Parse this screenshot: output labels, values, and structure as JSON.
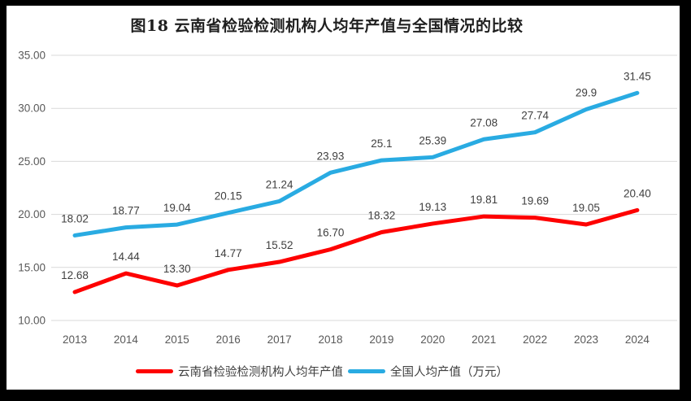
{
  "frame": {
    "background": "#000000",
    "panel_background": "#ffffff"
  },
  "chart_data": {
    "type": "line",
    "title": "图18  云南省检验检测机构人均年产值与全国情况的比较",
    "categories": [
      "2013",
      "2014",
      "2015",
      "2016",
      "2017",
      "2018",
      "2019",
      "2020",
      "2021",
      "2022",
      "2023",
      "2024"
    ],
    "series": [
      {
        "name": "云南省检验检测机构人均年产值",
        "color": "#fe0000",
        "values": [
          12.68,
          14.44,
          13.3,
          14.77,
          15.52,
          16.7,
          18.32,
          19.13,
          19.81,
          19.69,
          19.05,
          20.4
        ],
        "labels": [
          "12.68",
          "14.44",
          "13.30",
          "14.77",
          "15.52",
          "16.70",
          "18.32",
          "19.13",
          "19.81",
          "19.69",
          "19.05",
          "20.40"
        ]
      },
      {
        "name": "全国人均产值（万元）",
        "color": "#29abe2",
        "values": [
          18.02,
          18.77,
          19.04,
          20.15,
          21.24,
          23.93,
          25.1,
          25.39,
          27.08,
          27.74,
          29.9,
          31.45
        ],
        "labels": [
          "18.02",
          "18.77",
          "19.04",
          "20.15",
          "21.24",
          "23.93",
          "25.1",
          "25.39",
          "27.08",
          "27.74",
          "29.9",
          "31.45"
        ]
      }
    ],
    "y_ticks": [
      {
        "value": 10,
        "label": "10.00"
      },
      {
        "value": 15,
        "label": "15.00"
      },
      {
        "value": 20,
        "label": "20.00"
      },
      {
        "value": 25,
        "label": "25.00"
      },
      {
        "value": 30,
        "label": "30.00"
      },
      {
        "value": 35,
        "label": "35.00"
      }
    ],
    "ylim": [
      10,
      35
    ],
    "xlabel": "",
    "ylabel": "",
    "grid": "horizontal",
    "gridline_color": "#d9d9d9",
    "legend_position": "bottom"
  }
}
